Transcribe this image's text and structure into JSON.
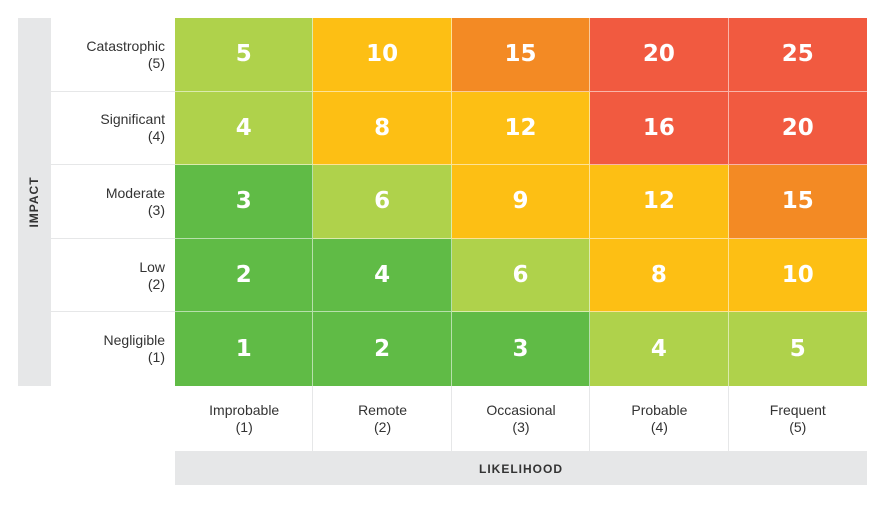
{
  "chart_data": {
    "type": "heatmap",
    "title": "",
    "xlabel": "LIKELIHOOD",
    "ylabel": "IMPACT",
    "x_categories": [
      {
        "name": "Improbable",
        "level": "(1)"
      },
      {
        "name": "Remote",
        "level": "(2)"
      },
      {
        "name": "Occasional",
        "level": "(3)"
      },
      {
        "name": "Probable",
        "level": "(4)"
      },
      {
        "name": "Frequent",
        "level": "(5)"
      }
    ],
    "y_categories": [
      {
        "name": "Catastrophic",
        "level": "(5)"
      },
      {
        "name": "Significant",
        "level": "(4)"
      },
      {
        "name": "Moderate",
        "level": "(3)"
      },
      {
        "name": "Low",
        "level": "(2)"
      },
      {
        "name": "Negligible",
        "level": "(1)"
      }
    ],
    "values": [
      [
        5,
        10,
        15,
        20,
        25
      ],
      [
        4,
        8,
        12,
        16,
        20
      ],
      [
        3,
        6,
        9,
        12,
        15
      ],
      [
        2,
        4,
        6,
        8,
        10
      ],
      [
        1,
        2,
        3,
        4,
        5
      ]
    ],
    "colors": {
      "dark_green": "#60bb46",
      "light_green": "#afd24b",
      "yellow": "#fdbf14",
      "orange": "#f38a24",
      "red": "#f15a40"
    },
    "cell_colors": [
      [
        "light_green",
        "yellow",
        "orange",
        "red",
        "red"
      ],
      [
        "light_green",
        "yellow",
        "yellow",
        "red",
        "red"
      ],
      [
        "dark_green",
        "light_green",
        "yellow",
        "yellow",
        "orange"
      ],
      [
        "dark_green",
        "dark_green",
        "light_green",
        "yellow",
        "yellow"
      ],
      [
        "dark_green",
        "dark_green",
        "dark_green",
        "light_green",
        "light_green"
      ]
    ]
  }
}
